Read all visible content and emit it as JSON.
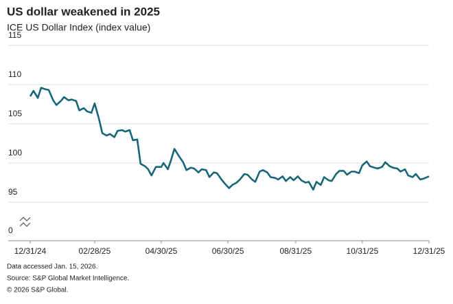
{
  "chart_data": {
    "type": "line",
    "title": "US dollar weakened in 2025",
    "subtitle": "ICE US Dollar Index (index value)",
    "notes": [
      "Data accessed Jan. 15, 2026.",
      "Source: S&P Global Market Intelligence.",
      "© 2026 S&P Global."
    ],
    "x": [
      "2024-12-31",
      "2025-01-03",
      "2025-01-07",
      "2025-01-10",
      "2025-01-14",
      "2025-01-17",
      "2025-01-21",
      "2025-01-24",
      "2025-01-28",
      "2025-01-31",
      "2025-02-04",
      "2025-02-07",
      "2025-02-11",
      "2025-02-14",
      "2025-02-18",
      "2025-02-21",
      "2025-02-25",
      "2025-02-28",
      "2025-03-04",
      "2025-03-07",
      "2025-03-11",
      "2025-03-14",
      "2025-03-18",
      "2025-03-21",
      "2025-03-25",
      "2025-03-28",
      "2025-04-01",
      "2025-04-04",
      "2025-04-08",
      "2025-04-11",
      "2025-04-15",
      "2025-04-18",
      "2025-04-21",
      "2025-04-25",
      "2025-04-30",
      "2025-05-02",
      "2025-05-06",
      "2025-05-09",
      "2025-05-12",
      "2025-05-16",
      "2025-05-20",
      "2025-05-23",
      "2025-05-27",
      "2025-05-30",
      "2025-06-03",
      "2025-06-06",
      "2025-06-10",
      "2025-06-13",
      "2025-06-17",
      "2025-06-20",
      "2025-06-24",
      "2025-06-27",
      "2025-07-01",
      "2025-07-04",
      "2025-07-08",
      "2025-07-11",
      "2025-07-15",
      "2025-07-18",
      "2025-07-22",
      "2025-07-25",
      "2025-07-29",
      "2025-08-01",
      "2025-08-05",
      "2025-08-08",
      "2025-08-12",
      "2025-08-15",
      "2025-08-19",
      "2025-08-22",
      "2025-08-26",
      "2025-08-29",
      "2025-09-02",
      "2025-09-05",
      "2025-09-09",
      "2025-09-12",
      "2025-09-16",
      "2025-09-19",
      "2025-09-23",
      "2025-09-26",
      "2025-09-30",
      "2025-10-03",
      "2025-10-07",
      "2025-10-10",
      "2025-10-14",
      "2025-10-17",
      "2025-10-21",
      "2025-10-24",
      "2025-10-28",
      "2025-10-31",
      "2025-11-04",
      "2025-11-07",
      "2025-11-11",
      "2025-11-14",
      "2025-11-18",
      "2025-11-21",
      "2025-11-25",
      "2025-11-28",
      "2025-12-02",
      "2025-12-05",
      "2025-12-09",
      "2025-12-12",
      "2025-12-16",
      "2025-12-19",
      "2025-12-23",
      "2025-12-26",
      "2025-12-31"
    ],
    "series": [
      {
        "name": "ICE US Dollar Index",
        "color": "#17657a",
        "values": [
          108.5,
          109.2,
          108.3,
          109.6,
          109.4,
          109.3,
          108.0,
          107.4,
          107.9,
          108.4,
          108.0,
          108.1,
          107.9,
          106.7,
          107.0,
          106.6,
          106.4,
          107.6,
          105.6,
          103.8,
          103.5,
          103.7,
          103.3,
          104.1,
          104.2,
          104.0,
          104.2,
          102.9,
          103.0,
          99.9,
          99.6,
          99.2,
          98.4,
          99.5,
          99.5,
          100.0,
          99.2,
          100.4,
          101.8,
          100.9,
          100.1,
          99.1,
          99.4,
          99.3,
          98.8,
          99.2,
          99.1,
          98.2,
          98.8,
          98.7,
          97.9,
          97.4,
          96.8,
          97.2,
          97.5,
          97.9,
          98.6,
          98.5,
          97.9,
          97.6,
          98.9,
          99.1,
          98.8,
          98.2,
          98.1,
          97.9,
          98.3,
          97.7,
          98.2,
          97.8,
          98.3,
          97.8,
          97.5,
          97.6,
          96.6,
          97.6,
          97.2,
          98.2,
          97.8,
          97.7,
          98.6,
          99.0,
          99.0,
          98.5,
          98.9,
          98.9,
          98.7,
          99.7,
          100.2,
          99.6,
          99.4,
          99.3,
          99.5,
          100.1,
          99.6,
          99.4,
          99.3,
          98.9,
          99.2,
          98.4,
          98.2,
          98.6,
          97.9,
          98.0,
          98.3
        ]
      }
    ],
    "xlim": [
      "2024-12-31",
      "2025-12-31"
    ],
    "xticks": [
      {
        "value": "2024-12-31",
        "label": "12/31/24"
      },
      {
        "value": "2025-02-28",
        "label": "02/28/25"
      },
      {
        "value": "2025-04-30",
        "label": "04/30/25"
      },
      {
        "value": "2025-06-30",
        "label": "06/30/25"
      },
      {
        "value": "2025-08-31",
        "label": "08/31/25"
      },
      {
        "value": "2025-10-31",
        "label": "10/31/25"
      },
      {
        "value": "2025-12-31",
        "label": "12/31/25"
      }
    ],
    "ylim": [
      0,
      115
    ],
    "yticks": [
      0,
      95,
      100,
      105,
      110,
      115
    ],
    "grid": true,
    "axis_break": true
  }
}
